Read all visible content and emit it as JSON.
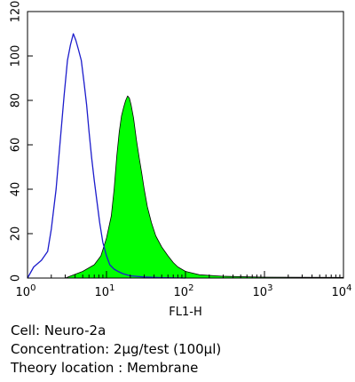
{
  "chart_data": {
    "type": "area",
    "title": "",
    "xlabel": "FL1-H",
    "ylabel": "",
    "x_scale": "log",
    "xlim": [
      1,
      10000
    ],
    "ylim": [
      0,
      120
    ],
    "y_ticks": [
      0,
      20,
      40,
      60,
      80,
      100,
      120
    ],
    "x_ticks": [
      {
        "base": "10",
        "exp": "0"
      },
      {
        "base": "10",
        "exp": "1"
      },
      {
        "base": "10",
        "exp": "2"
      },
      {
        "base": "10",
        "exp": "3"
      },
      {
        "base": "10",
        "exp": "4"
      }
    ],
    "grid": false,
    "legend": "none",
    "series": [
      {
        "style": "outline",
        "color": "#1c1ccc",
        "x": [
          1.0,
          1.2,
          1.5,
          1.8,
          2.0,
          2.3,
          2.6,
          2.9,
          3.2,
          3.5,
          3.8,
          4.1,
          4.4,
          4.8,
          5.2,
          5.6,
          6.0,
          6.5,
          7.0,
          7.6,
          8.2,
          9.0,
          10.0,
          11.0,
          12.5,
          14.0,
          16.0,
          20.0,
          30.0,
          50.0,
          100.0
        ],
        "values": [
          0,
          5,
          8,
          12,
          22,
          40,
          62,
          82,
          98,
          105,
          110,
          107,
          103,
          98,
          88,
          78,
          66,
          54,
          44,
          34,
          25,
          16,
          10,
          6,
          4,
          3,
          2,
          1,
          0.5,
          0.2,
          0
        ]
      },
      {
        "style": "filled",
        "color": "#00ff00",
        "x": [
          3.0,
          5.0,
          7.0,
          8.5,
          10.0,
          11.5,
          12.5,
          13.5,
          14.5,
          15.5,
          16.5,
          17.5,
          18.5,
          19.5,
          20.5,
          22.0,
          24.0,
          26.0,
          28.0,
          30.0,
          33.0,
          37.0,
          42.0,
          50.0,
          60.0,
          70.0,
          80.0,
          100.0,
          150.0,
          300.0,
          1000.0,
          10000.0
        ],
        "values": [
          0,
          3,
          6,
          10,
          18,
          28,
          40,
          55,
          66,
          73,
          77,
          80,
          82,
          81,
          78,
          72,
          62,
          54,
          47,
          40,
          32,
          25,
          19,
          14,
          10,
          7,
          5,
          3,
          1.5,
          0.8,
          0.4,
          0.3
        ]
      }
    ]
  },
  "annotations": {
    "cell": "Cell: Neuro-2a",
    "concentration": "Concentration: 2µg/test (100µl)",
    "location": "Theory location : Membrane"
  }
}
